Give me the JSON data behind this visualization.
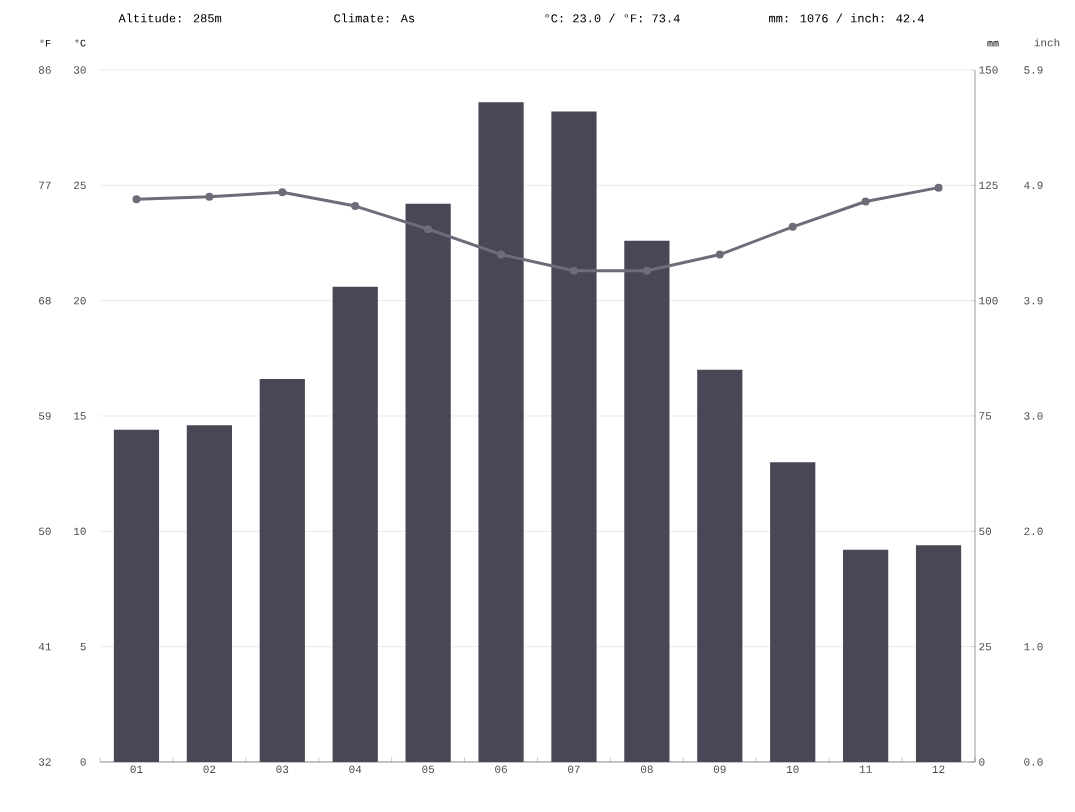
{
  "chart_data": {
    "type": "bar",
    "categories": [
      "01",
      "02",
      "03",
      "04",
      "05",
      "06",
      "07",
      "08",
      "09",
      "10",
      "11",
      "12"
    ],
    "series": [
      {
        "axis": "y2",
        "color": "#4a4656",
        "values": [
          72,
          73,
          83,
          103,
          121,
          143,
          141,
          113,
          85,
          65,
          46,
          47
        ]
      },
      {
        "type": "line",
        "color": "#6e6c78",
        "marker": "circle",
        "values": [
          24.4,
          24.5,
          24.7,
          24.1,
          23.1,
          22.0,
          21.3,
          21.3,
          22.0,
          23.2,
          24.3,
          24.9
        ]
      }
    ],
    "ylabel": "°C",
    "y2label": "mm",
    "y3label": "°F",
    "ylim": [
      0,
      30
    ],
    "yticks": [
      0,
      5,
      10,
      15,
      20,
      25,
      30
    ],
    "y2lim": [
      0,
      150
    ],
    "y2ticks": [
      0,
      25,
      50,
      75,
      100,
      125,
      150
    ],
    "y3lim": [
      32,
      86
    ],
    "y3ticks": [
      32,
      41,
      50,
      59,
      68,
      77,
      86
    ],
    "grid": "y",
    "annotations": [
      "Altitude: 285m",
      "Climate: As",
      "°C: 23.0 / °F: 73.4",
      "mm: 1076 / inch: 42.4",
      "inch",
      "0.0",
      "1.0",
      "2.0",
      "3.0",
      "3.9",
      "4.9",
      "5.9"
    ]
  }
}
